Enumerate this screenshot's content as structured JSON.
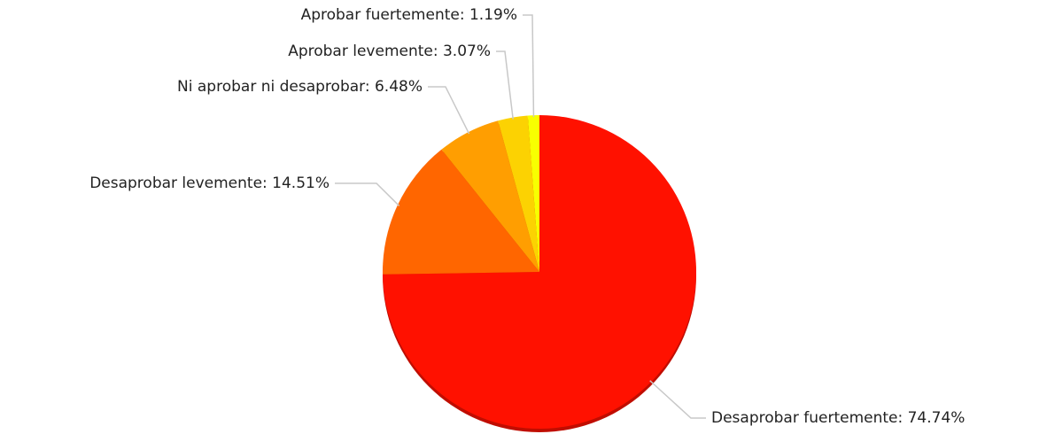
{
  "chart_data": {
    "type": "pie",
    "values": [
      74.74,
      14.51,
      6.48,
      3.07,
      1.19
    ],
    "value_labels": [
      "Desaprobar fuertemente: 74.74%",
      "Desaprobar levemente: 14.51%",
      "Ni aprobar ni desaprobar: 6.48%",
      "Aprobar levemente: 3.07%",
      "Aprobar fuertemente: 1.19%"
    ],
    "colors": [
      "#ff1100",
      "#ff6600",
      "#ff9e01",
      "#fcd202",
      "#f8ff01"
    ]
  }
}
